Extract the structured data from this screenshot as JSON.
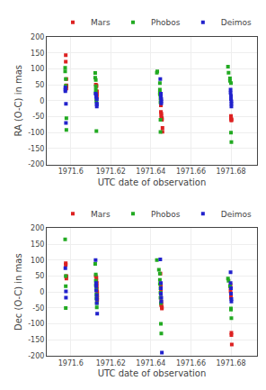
{
  "chart_data": [
    {
      "type": "scatter",
      "y_label": "RA (O-C) in mas",
      "x_label": "UTC date of observation",
      "xlim": [
        1971.588,
        1971.693
      ],
      "ylim": [
        -200,
        200
      ],
      "xticks": [
        1971.6,
        1971.62,
        1971.64,
        1971.66,
        1971.68
      ],
      "yticks": [
        -200,
        -150,
        -100,
        -50,
        0,
        50,
        100,
        150,
        200
      ],
      "grid": true,
      "legend": "upper right",
      "series": [
        {
          "name": "Mars",
          "color": "#dd2222",
          "marker": "square",
          "x": [
            1971.5975,
            1971.5975,
            1971.5978,
            1971.5978,
            1971.5978,
            1971.5978,
            1971.5978,
            1971.6125,
            1971.6128,
            1971.6128,
            1971.613,
            1971.613,
            1971.613,
            1971.613,
            1971.613,
            1971.645,
            1971.645,
            1971.645,
            1971.6452,
            1971.6452,
            1971.6452,
            1971.6455,
            1971.6455,
            1971.6455,
            1971.6458,
            1971.6458,
            1971.68,
            1971.68,
            1971.68,
            1971.6802,
            1971.6802,
            1971.6802
          ],
          "values": [
            143,
            122,
            68,
            48,
            46,
            45,
            38,
            50,
            48,
            45,
            30,
            28,
            22,
            18,
            10,
            -5,
            -15,
            -35,
            -40,
            -45,
            -52,
            -55,
            -58,
            -60,
            -85,
            -97,
            -48,
            -52,
            -55,
            -58,
            -60,
            -62
          ]
        },
        {
          "name": "Phobos",
          "color": "#22aa22",
          "marker": "square",
          "x": [
            1971.5972,
            1971.5972,
            1971.5975,
            1971.5975,
            1971.5978,
            1971.5978,
            1971.6122,
            1971.6122,
            1971.6125,
            1971.6125,
            1971.6125,
            1971.6125,
            1971.6128,
            1971.6128,
            1971.6128,
            1971.643,
            1971.6432,
            1971.6445,
            1971.6445,
            1971.6445,
            1971.6445,
            1971.6448,
            1971.6448,
            1971.6448,
            1971.6448,
            1971.6785,
            1971.6788,
            1971.6795,
            1971.6795,
            1971.68,
            1971.68,
            1971.6802
          ],
          "values": [
            103,
            92,
            68,
            47,
            -55,
            -92,
            87,
            72,
            65,
            45,
            35,
            25,
            5,
            -2,
            -95,
            88,
            92,
            55,
            35,
            25,
            20,
            8,
            -5,
            -60,
            -98,
            107,
            88,
            70,
            62,
            55,
            -100,
            -130
          ]
        },
        {
          "name": "Deimos",
          "color": "#2222cc",
          "marker": "square",
          "x": [
            1971.5973,
            1971.5973,
            1971.5973,
            1971.5976,
            1971.5976,
            1971.6124,
            1971.6127,
            1971.6127,
            1971.613,
            1971.613,
            1971.613,
            1971.613,
            1971.6447,
            1971.645,
            1971.645,
            1971.645,
            1971.6452,
            1971.6452,
            1971.6452,
            1971.6798,
            1971.6798,
            1971.68,
            1971.68,
            1971.6802,
            1971.6802,
            1971.6802
          ],
          "values": [
            42,
            35,
            30,
            -10,
            -70,
            22,
            18,
            12,
            5,
            -8,
            -12,
            -18,
            68,
            22,
            18,
            12,
            5,
            -2,
            -8,
            35,
            25,
            15,
            5,
            -2,
            -10,
            -18
          ]
        }
      ]
    },
    {
      "type": "scatter",
      "y_label": "Dec (O-C) in mas",
      "x_label": "UTC date of observation",
      "xlim": [
        1971.588,
        1971.693
      ],
      "ylim": [
        -200,
        200
      ],
      "xticks": [
        1971.6,
        1971.62,
        1971.64,
        1971.66,
        1971.68
      ],
      "yticks": [
        -200,
        -150,
        -100,
        -50,
        0,
        50,
        100,
        150,
        200
      ],
      "grid": true,
      "legend": "upper right",
      "series": [
        {
          "name": "Mars",
          "color": "#dd2222",
          "marker": "square",
          "x": [
            1971.5975,
            1971.5975,
            1971.5978,
            1971.5978,
            1971.5978,
            1971.6125,
            1971.6128,
            1971.6128,
            1971.613,
            1971.613,
            1971.613,
            1971.6132,
            1971.6132,
            1971.6132,
            1971.6132,
            1971.6448,
            1971.645,
            1971.645,
            1971.645,
            1971.6452,
            1971.6452,
            1971.6452,
            1971.6455,
            1971.6455,
            1971.6798,
            1971.6798,
            1971.6798,
            1971.68,
            1971.68,
            1971.6802,
            1971.6802,
            1971.6804
          ],
          "values": [
            90,
            85,
            50,
            48,
            42,
            50,
            45,
            35,
            28,
            18,
            8,
            0,
            -10,
            -18,
            -25,
            58,
            22,
            5,
            -18,
            -30,
            -38,
            -42,
            -48,
            -52,
            22,
            12,
            2,
            -8,
            -18,
            -128,
            -135,
            -165
          ]
        },
        {
          "name": "Phobos",
          "color": "#22aa22",
          "marker": "square",
          "x": [
            1971.5972,
            1971.5975,
            1971.5975,
            1971.5975,
            1971.6122,
            1971.6125,
            1971.6125,
            1971.6125,
            1971.6128,
            1971.6128,
            1971.6128,
            1971.613,
            1971.613,
            1971.643,
            1971.644,
            1971.6445,
            1971.6445,
            1971.6445,
            1971.6448,
            1971.6448,
            1971.6448,
            1971.645,
            1971.645,
            1971.6452,
            1971.6785,
            1971.6788,
            1971.6795,
            1971.68,
            1971.68,
            1971.6802
          ],
          "values": [
            165,
            50,
            18,
            -50,
            88,
            55,
            35,
            22,
            10,
            -8,
            -20,
            -35,
            -48,
            100,
            70,
            58,
            38,
            25,
            12,
            -2,
            -18,
            -35,
            -100,
            -130,
            42,
            35,
            18,
            -52,
            -55,
            -82
          ]
        },
        {
          "name": "Deimos",
          "color": "#2222cc",
          "marker": "square",
          "x": [
            1971.5973,
            1971.5976,
            1971.5976,
            1971.6124,
            1971.6127,
            1971.6127,
            1971.6127,
            1971.613,
            1971.613,
            1971.613,
            1971.6132,
            1971.6447,
            1971.645,
            1971.645,
            1971.645,
            1971.6452,
            1971.6452,
            1971.6455,
            1971.6798,
            1971.6798,
            1971.68,
            1971.68,
            1971.6802,
            1971.6802
          ],
          "values": [
            75,
            2,
            -18,
            100,
            28,
            18,
            5,
            -10,
            -22,
            -35,
            -68,
            102,
            28,
            12,
            -5,
            -18,
            -30,
            -190,
            62,
            28,
            12,
            -5,
            -22,
            -30
          ]
        }
      ]
    }
  ]
}
